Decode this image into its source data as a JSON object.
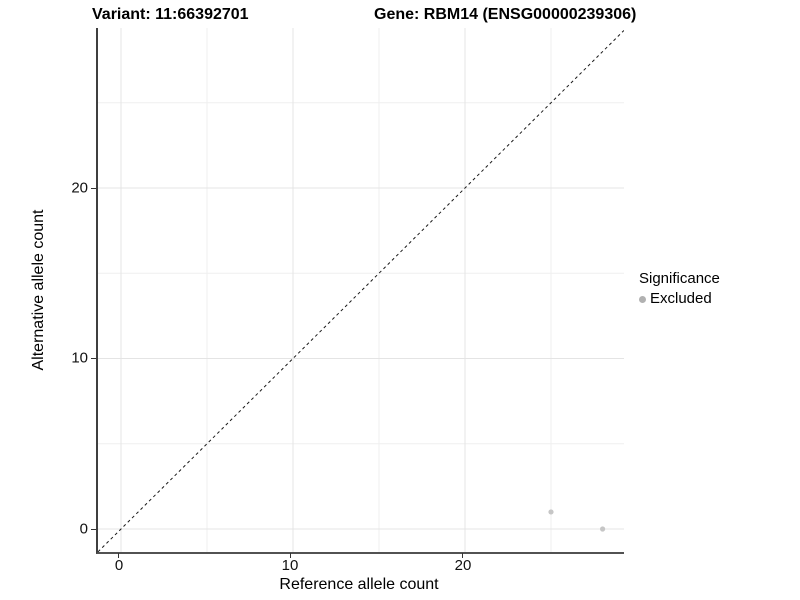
{
  "figure": {
    "title_left": "Variant: 11:66392701",
    "title_right": "Gene: RBM14 (ENSG00000239306)"
  },
  "chart_data": {
    "type": "scatter",
    "title_left": "Variant: 11:66392701",
    "title_right": "Gene: RBM14 (ENSG00000239306)",
    "xlabel": "Reference allele count",
    "ylabel": "Alternative allele count",
    "xlim": [
      -1.34,
      29.24
    ],
    "ylim": [
      -1.35,
      29.38
    ],
    "x_ticks": [
      0,
      10,
      20
    ],
    "y_ticks": [
      0,
      10,
      20
    ],
    "x_tick_labels": [
      "0",
      "10",
      "20"
    ],
    "y_tick_labels": [
      "0",
      "10",
      "20"
    ],
    "grid": {
      "major": [
        0,
        10,
        20
      ],
      "minor": [
        5,
        15,
        25
      ],
      "major_color": "#e4e4e4",
      "minor_color": "#efefef"
    },
    "reference_line": {
      "description": "identity line y = x",
      "style": "dashed",
      "color": "#1a1a1a"
    },
    "series": [
      {
        "name": "Excluded",
        "color": "#c6c6c6",
        "points": [
          {
            "x": 25,
            "y": 1
          },
          {
            "x": 28,
            "y": 0
          }
        ]
      }
    ],
    "legend": {
      "title": "Significance",
      "position": "right",
      "items": [
        {
          "label": "Excluded",
          "color": "#b1b1b1"
        }
      ]
    }
  }
}
